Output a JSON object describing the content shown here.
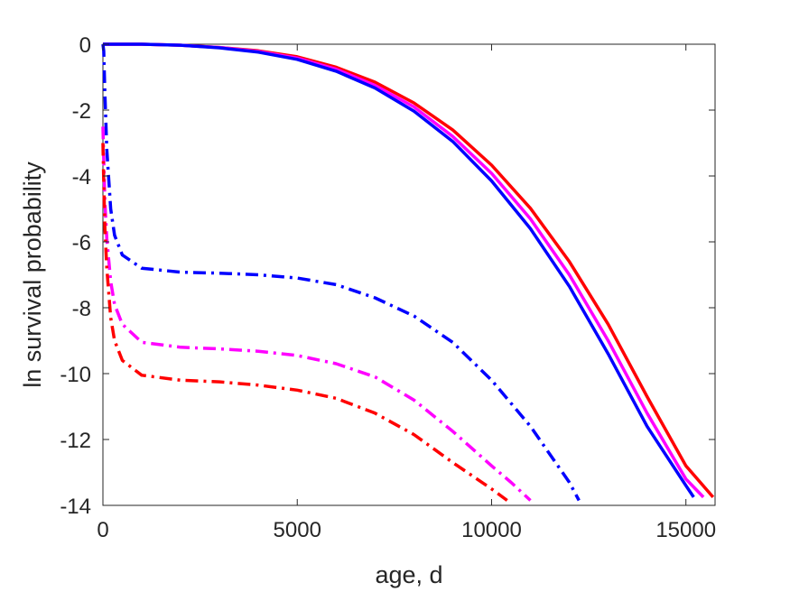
{
  "chart_data": {
    "type": "line",
    "title": "",
    "xlabel": "age, d",
    "ylabel": "ln survival probability",
    "xlim": [
      0,
      15750
    ],
    "ylim": [
      -14,
      0
    ],
    "xticks": [
      0,
      5000,
      10000,
      15000
    ],
    "yticks": [
      0,
      -2,
      -4,
      -6,
      -8,
      -10,
      -12,
      -14
    ],
    "xtick_labels": [
      "0",
      "5000",
      "10000",
      "15000"
    ],
    "ytick_labels": [
      "0",
      "-2",
      "-4",
      "-6",
      "-8",
      "-10",
      "-12",
      "-14"
    ],
    "grid": false,
    "legend": "none",
    "series": [
      {
        "color": "#ff0000",
        "style": "solid",
        "x": [
          0,
          1000,
          2000,
          3000,
          4000,
          5000,
          6000,
          7000,
          8000,
          9000,
          10000,
          11000,
          12000,
          13000,
          14000,
          15000,
          15700
        ],
        "y": [
          0,
          0,
          -0.03,
          -0.1,
          -0.2,
          -0.38,
          -0.7,
          -1.15,
          -1.78,
          -2.6,
          -3.67,
          -4.98,
          -6.6,
          -8.5,
          -10.7,
          -12.8,
          -13.75
        ]
      },
      {
        "color": "#ff00ff",
        "style": "solid",
        "x": [
          0,
          1000,
          2000,
          3000,
          4000,
          5000,
          6000,
          7000,
          8000,
          9000,
          10000,
          11000,
          12000,
          13000,
          14000,
          15000,
          15450
        ],
        "y": [
          0,
          0,
          -0.03,
          -0.1,
          -0.22,
          -0.42,
          -0.76,
          -1.25,
          -1.9,
          -2.8,
          -3.92,
          -5.3,
          -7.0,
          -9.0,
          -11.2,
          -13.2,
          -13.75
        ]
      },
      {
        "color": "#0000ff",
        "style": "solid",
        "x": [
          0,
          1000,
          2000,
          3000,
          4000,
          5000,
          6000,
          7000,
          8000,
          9000,
          10000,
          11000,
          12000,
          13000,
          14000,
          15000,
          15200
        ],
        "y": [
          0,
          0,
          -0.03,
          -0.11,
          -0.24,
          -0.46,
          -0.82,
          -1.33,
          -2.03,
          -2.95,
          -4.15,
          -5.6,
          -7.35,
          -9.4,
          -11.6,
          -13.4,
          -13.75
        ]
      },
      {
        "color": "#0000ff",
        "style": "dashdot",
        "x": [
          0,
          20,
          50,
          100,
          200,
          300,
          500,
          1000,
          2000,
          3000,
          4000,
          5000,
          6000,
          7000,
          8000,
          9000,
          10000,
          11000,
          12000,
          12250
        ],
        "y": [
          0,
          -0.2,
          -1.5,
          -3.2,
          -5.0,
          -5.8,
          -6.4,
          -6.8,
          -6.92,
          -6.95,
          -7.0,
          -7.1,
          -7.3,
          -7.7,
          -8.25,
          -9.05,
          -10.2,
          -11.6,
          -13.3,
          -13.85
        ]
      },
      {
        "color": "#ff00ff",
        "style": "dashdot",
        "x": [
          0,
          20,
          50,
          100,
          200,
          300,
          500,
          1000,
          2000,
          3000,
          4000,
          5000,
          6000,
          7000,
          8000,
          9000,
          10000,
          10500,
          11000
        ],
        "y": [
          -2.5,
          -3.5,
          -4.8,
          -5.9,
          -7.2,
          -7.9,
          -8.5,
          -9.05,
          -9.2,
          -9.25,
          -9.32,
          -9.45,
          -9.7,
          -10.1,
          -10.8,
          -11.75,
          -12.8,
          -13.3,
          -13.85
        ]
      },
      {
        "color": "#ff0000",
        "style": "dashdot",
        "x": [
          0,
          20,
          50,
          100,
          200,
          300,
          500,
          1000,
          2000,
          3000,
          4000,
          5000,
          6000,
          7000,
          8000,
          9000,
          10000,
          10400
        ],
        "y": [
          -3.0,
          -4.2,
          -5.6,
          -6.8,
          -8.3,
          -9.0,
          -9.6,
          -10.05,
          -10.2,
          -10.25,
          -10.35,
          -10.5,
          -10.75,
          -11.2,
          -11.85,
          -12.7,
          -13.5,
          -13.85
        ]
      }
    ]
  }
}
